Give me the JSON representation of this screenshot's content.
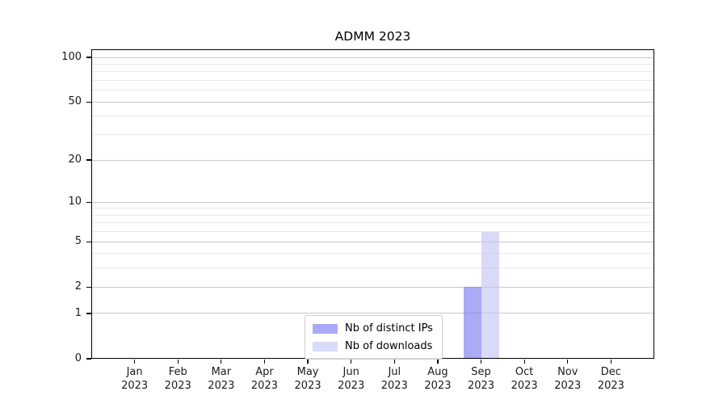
{
  "chart_data": {
    "type": "bar",
    "title": "ADMM 2023",
    "x_tick_labels_line1": [
      "Jan",
      "Feb",
      "Mar",
      "Apr",
      "May",
      "Jun",
      "Jul",
      "Aug",
      "Sep",
      "Oct",
      "Nov",
      "Dec"
    ],
    "x_tick_labels_line2": [
      "2023",
      "2023",
      "2023",
      "2023",
      "2023",
      "2023",
      "2023",
      "2023",
      "2023",
      "2023",
      "2023",
      "2023"
    ],
    "categories": [
      "Jan 2023",
      "Feb 2023",
      "Mar 2023",
      "Apr 2023",
      "May 2023",
      "Jun 2023",
      "Jul 2023",
      "Aug 2023",
      "Sep 2023",
      "Oct 2023",
      "Nov 2023",
      "Dec 2023"
    ],
    "series": [
      {
        "name": "Nb of distinct IPs",
        "fill_rgba": "rgba(113,113,241,0.6)",
        "solid_hex": "#aaaaf5",
        "values": [
          0,
          0,
          0,
          0,
          0,
          0,
          0,
          0,
          2,
          0,
          0,
          0
        ]
      },
      {
        "name": "Nb of downloads",
        "fill_rgba": "rgba(192,192,243,0.6)",
        "solid_hex": "#d9d9f8",
        "values": [
          0,
          0,
          0,
          0,
          0,
          0,
          0,
          0,
          6,
          0,
          0,
          0
        ]
      }
    ],
    "y_axis": {
      "scale": "log1p",
      "ticks": [
        0,
        1,
        2,
        5,
        10,
        20,
        50,
        100
      ],
      "minor_ticks": [
        3,
        4,
        6,
        7,
        8,
        9,
        30,
        40,
        60,
        70,
        80,
        90
      ],
      "top_value": 113.5,
      "ylim": [
        0,
        113.5
      ]
    },
    "grid": {
      "major_color": "#c9c9c9",
      "minor_color": "#e9e9e9",
      "on": true
    },
    "legend": {
      "position": "lower center",
      "entries": [
        "Nb of distinct IPs",
        "Nb of downloads"
      ]
    }
  }
}
